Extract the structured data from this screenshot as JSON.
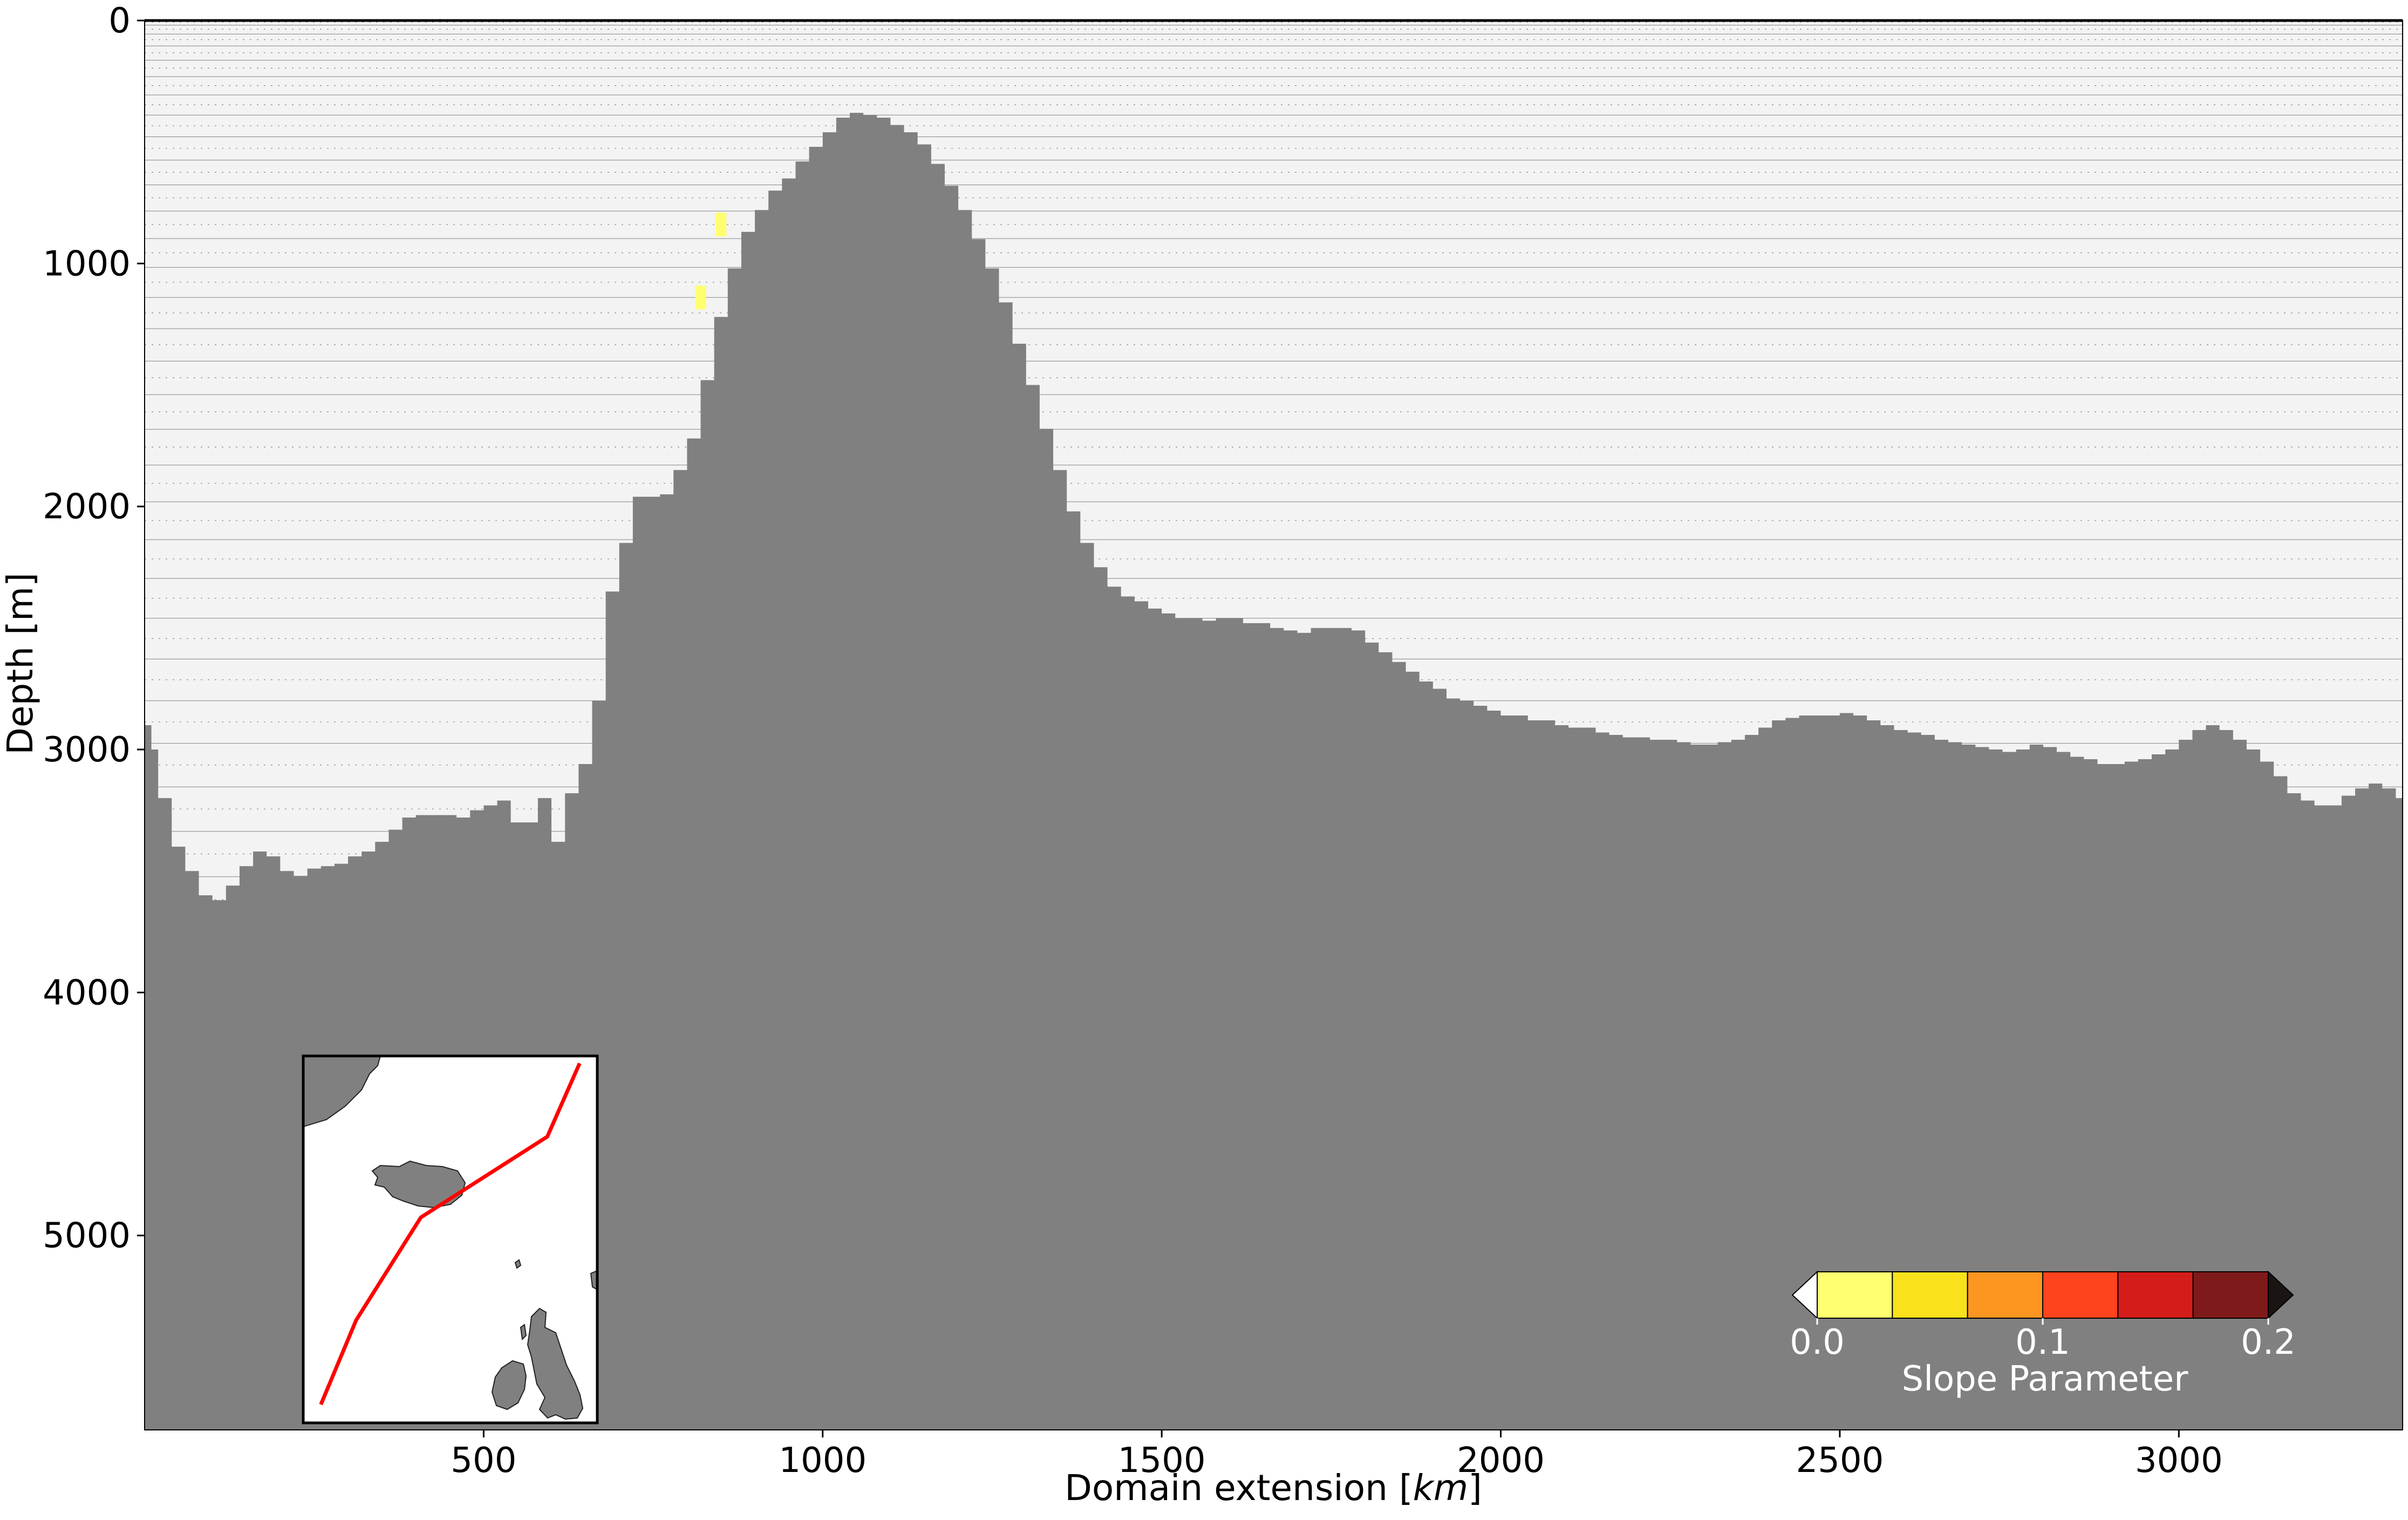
{
  "chart_data": {
    "type": "area",
    "title": "",
    "xlabel": "Domain extension [km]",
    "xlabel_main": "Domain extension [",
    "xlabel_unit": "km",
    "xlabel_close": "]",
    "ylabel": "Depth [m]",
    "xlim": [
      0,
      3330
    ],
    "ylim": [
      0,
      5800
    ],
    "y_inverted": true,
    "xticks": [
      500,
      1000,
      1500,
      2000,
      2500,
      3000
    ],
    "yticks": [
      0,
      1000,
      2000,
      3000,
      4000,
      5000
    ],
    "series": [
      {
        "kind": "bathymetry",
        "x": [
          0,
          10,
          20,
          40,
          60,
          80,
          100,
          120,
          140,
          160,
          180,
          200,
          220,
          240,
          260,
          280,
          300,
          320,
          340,
          360,
          380,
          400,
          420,
          440,
          460,
          480,
          500,
          520,
          540,
          560,
          580,
          600,
          620,
          640,
          660,
          680,
          700,
          720,
          740,
          760,
          780,
          800,
          820,
          840,
          860,
          880,
          900,
          920,
          940,
          960,
          980,
          1000,
          1020,
          1040,
          1060,
          1080,
          1100,
          1120,
          1140,
          1160,
          1180,
          1200,
          1220,
          1240,
          1260,
          1280,
          1300,
          1320,
          1340,
          1360,
          1380,
          1400,
          1420,
          1440,
          1460,
          1480,
          1500,
          1520,
          1540,
          1560,
          1580,
          1600,
          1620,
          1640,
          1660,
          1680,
          1700,
          1720,
          1740,
          1760,
          1780,
          1800,
          1820,
          1840,
          1860,
          1880,
          1900,
          1920,
          1940,
          1960,
          1980,
          2000,
          2020,
          2040,
          2060,
          2080,
          2100,
          2120,
          2140,
          2160,
          2180,
          2200,
          2220,
          2240,
          2260,
          2280,
          2300,
          2320,
          2340,
          2360,
          2380,
          2400,
          2420,
          2440,
          2460,
          2480,
          2500,
          2520,
          2540,
          2560,
          2580,
          2600,
          2620,
          2640,
          2660,
          2680,
          2700,
          2720,
          2740,
          2760,
          2780,
          2800,
          2820,
          2840,
          2860,
          2880,
          2900,
          2920,
          2940,
          2960,
          2980,
          3000,
          3020,
          3040,
          3060,
          3080,
          3100,
          3120,
          3140,
          3160,
          3180,
          3200,
          3220,
          3240,
          3260,
          3280,
          3300,
          3320
        ],
        "depth": [
          2900,
          3000,
          3200,
          3400,
          3500,
          3600,
          3620,
          3560,
          3480,
          3420,
          3440,
          3500,
          3520,
          3490,
          3480,
          3470,
          3440,
          3420,
          3380,
          3330,
          3280,
          3270,
          3270,
          3270,
          3280,
          3250,
          3230,
          3210,
          3300,
          3300,
          3200,
          3380,
          3180,
          3060,
          2800,
          2350,
          2150,
          1960,
          1960,
          1950,
          1850,
          1720,
          1480,
          1220,
          1020,
          870,
          780,
          700,
          650,
          580,
          520,
          460,
          400,
          380,
          390,
          400,
          430,
          460,
          510,
          590,
          680,
          780,
          900,
          1020,
          1160,
          1330,
          1500,
          1680,
          1850,
          2020,
          2150,
          2250,
          2330,
          2370,
          2390,
          2420,
          2440,
          2460,
          2460,
          2470,
          2460,
          2460,
          2480,
          2480,
          2500,
          2510,
          2520,
          2500,
          2500,
          2500,
          2510,
          2560,
          2600,
          2640,
          2680,
          2720,
          2750,
          2790,
          2800,
          2820,
          2840,
          2860,
          2860,
          2880,
          2880,
          2900,
          2910,
          2910,
          2930,
          2940,
          2950,
          2950,
          2960,
          2960,
          2970,
          2980,
          2980,
          2970,
          2960,
          2940,
          2910,
          2880,
          2870,
          2860,
          2860,
          2860,
          2850,
          2860,
          2880,
          2900,
          2920,
          2930,
          2940,
          2960,
          2970,
          2980,
          2990,
          3000,
          3010,
          3000,
          2980,
          2990,
          3010,
          3030,
          3040,
          3060,
          3060,
          3050,
          3040,
          3020,
          3000,
          2960,
          2920,
          2900,
          2920,
          2960,
          3000,
          3050,
          3110,
          3180,
          3210,
          3230,
          3230,
          3190,
          3160,
          3140,
          3160,
          3200,
          3280,
          3300
        ]
      }
    ],
    "highlights": [
      {
        "x": 850,
        "depth": 840,
        "value": 0.05
      },
      {
        "x": 820,
        "depth": 1140,
        "value": 0.05
      }
    ],
    "model_levels": 80,
    "colorbar": {
      "label": "Slope Parameter",
      "ticks": [
        "0.0",
        "0.1",
        "0.2"
      ],
      "range": [
        0.0,
        0.2
      ],
      "colors": [
        "#ffffff",
        "#ffff70",
        "#f9e21b",
        "#fd9521",
        "#ff431d",
        "#d41c1a",
        "#7e1a19",
        "#1a1413"
      ],
      "extend": "both"
    },
    "inset_map": {
      "land_color": "#808080",
      "track_color": "#ff0000",
      "track": [
        [
          0.06,
          0.95
        ],
        [
          0.18,
          0.72
        ],
        [
          0.4,
          0.44
        ],
        [
          0.83,
          0.22
        ],
        [
          0.94,
          0.02
        ]
      ]
    },
    "colors": {
      "land": "#808080",
      "water": "#f3f3f3",
      "level_line": "#2a2a2a",
      "axis": "#000000"
    }
  }
}
